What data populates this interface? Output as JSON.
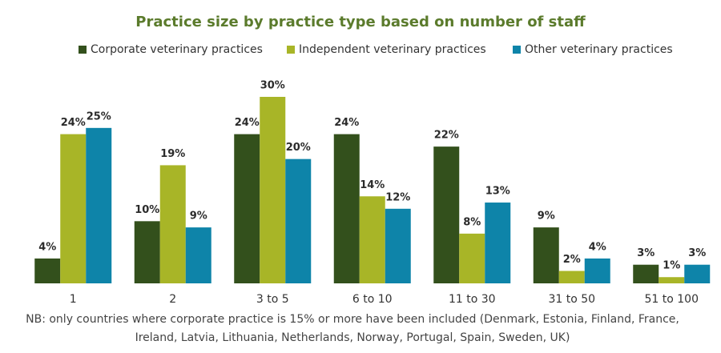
{
  "chart_data": {
    "type": "bar",
    "title": "Practice size by practice type based on number of staff",
    "categories": [
      "1",
      "2",
      "3 to 5",
      "6 to 10",
      "11 to 30",
      "31 to 50",
      "51 to 100"
    ],
    "series": [
      {
        "name": "Corporate veterinary practices",
        "color": "#33501c",
        "values": [
          4,
          10,
          24,
          24,
          22,
          9,
          3
        ],
        "value_labels": [
          "4%",
          "10%",
          "24%",
          "24%",
          "22%",
          "9%",
          "3%"
        ]
      },
      {
        "name": "Independent veterinary practices",
        "color": "#a8b527",
        "values": [
          24,
          19,
          30,
          14,
          8,
          2,
          1
        ],
        "value_labels": [
          "24%",
          "19%",
          "30%",
          "14%",
          "8%",
          "2%",
          "1%"
        ]
      },
      {
        "name": "Other veterinary practices",
        "color": "#0e84a9",
        "values": [
          25,
          9,
          20,
          12,
          13,
          4,
          3
        ],
        "value_labels": [
          "25%",
          "9%",
          "20%",
          "12%",
          "13%",
          "4%",
          "3%"
        ]
      }
    ],
    "note": "NB: only countries where corporate practice is 15% or more have been included (Denmark, Estonia, Finland, France, Ireland, Latvia, Lithuania, Netherlands, Norway, Portugal, Spain, Sweden, UK)"
  }
}
